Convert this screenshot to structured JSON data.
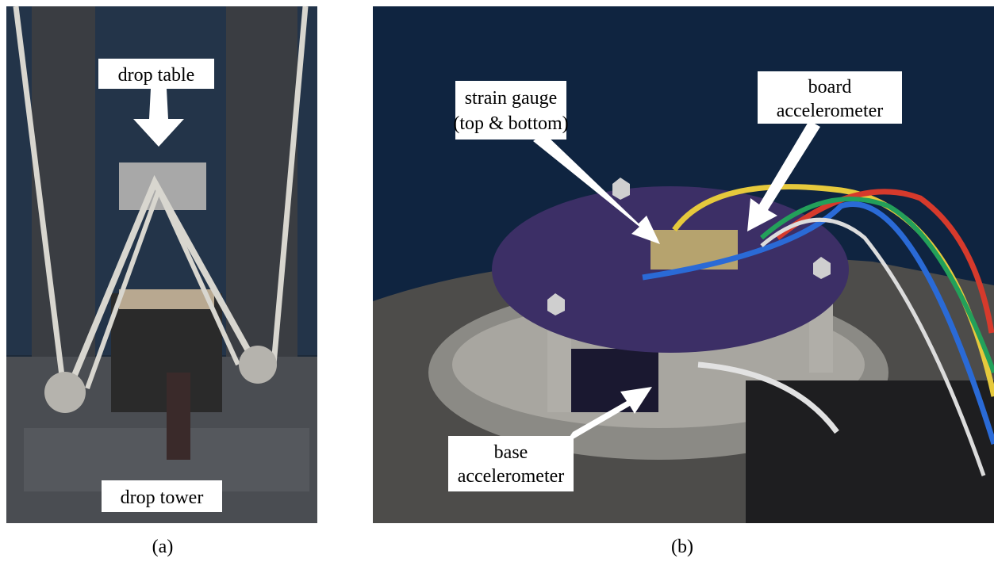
{
  "panels": [
    {
      "caption": "(a)",
      "labels": [
        {
          "lines": [
            "drop table"
          ]
        },
        {
          "lines": [
            "drop tower"
          ]
        }
      ]
    },
    {
      "caption": "(b)",
      "labels": [
        {
          "lines": [
            "strain gauge",
            "(top & bottom)"
          ]
        },
        {
          "lines": [
            "board",
            "accelerometer"
          ]
        },
        {
          "lines": [
            "base",
            "accelerometer"
          ]
        }
      ]
    }
  ]
}
